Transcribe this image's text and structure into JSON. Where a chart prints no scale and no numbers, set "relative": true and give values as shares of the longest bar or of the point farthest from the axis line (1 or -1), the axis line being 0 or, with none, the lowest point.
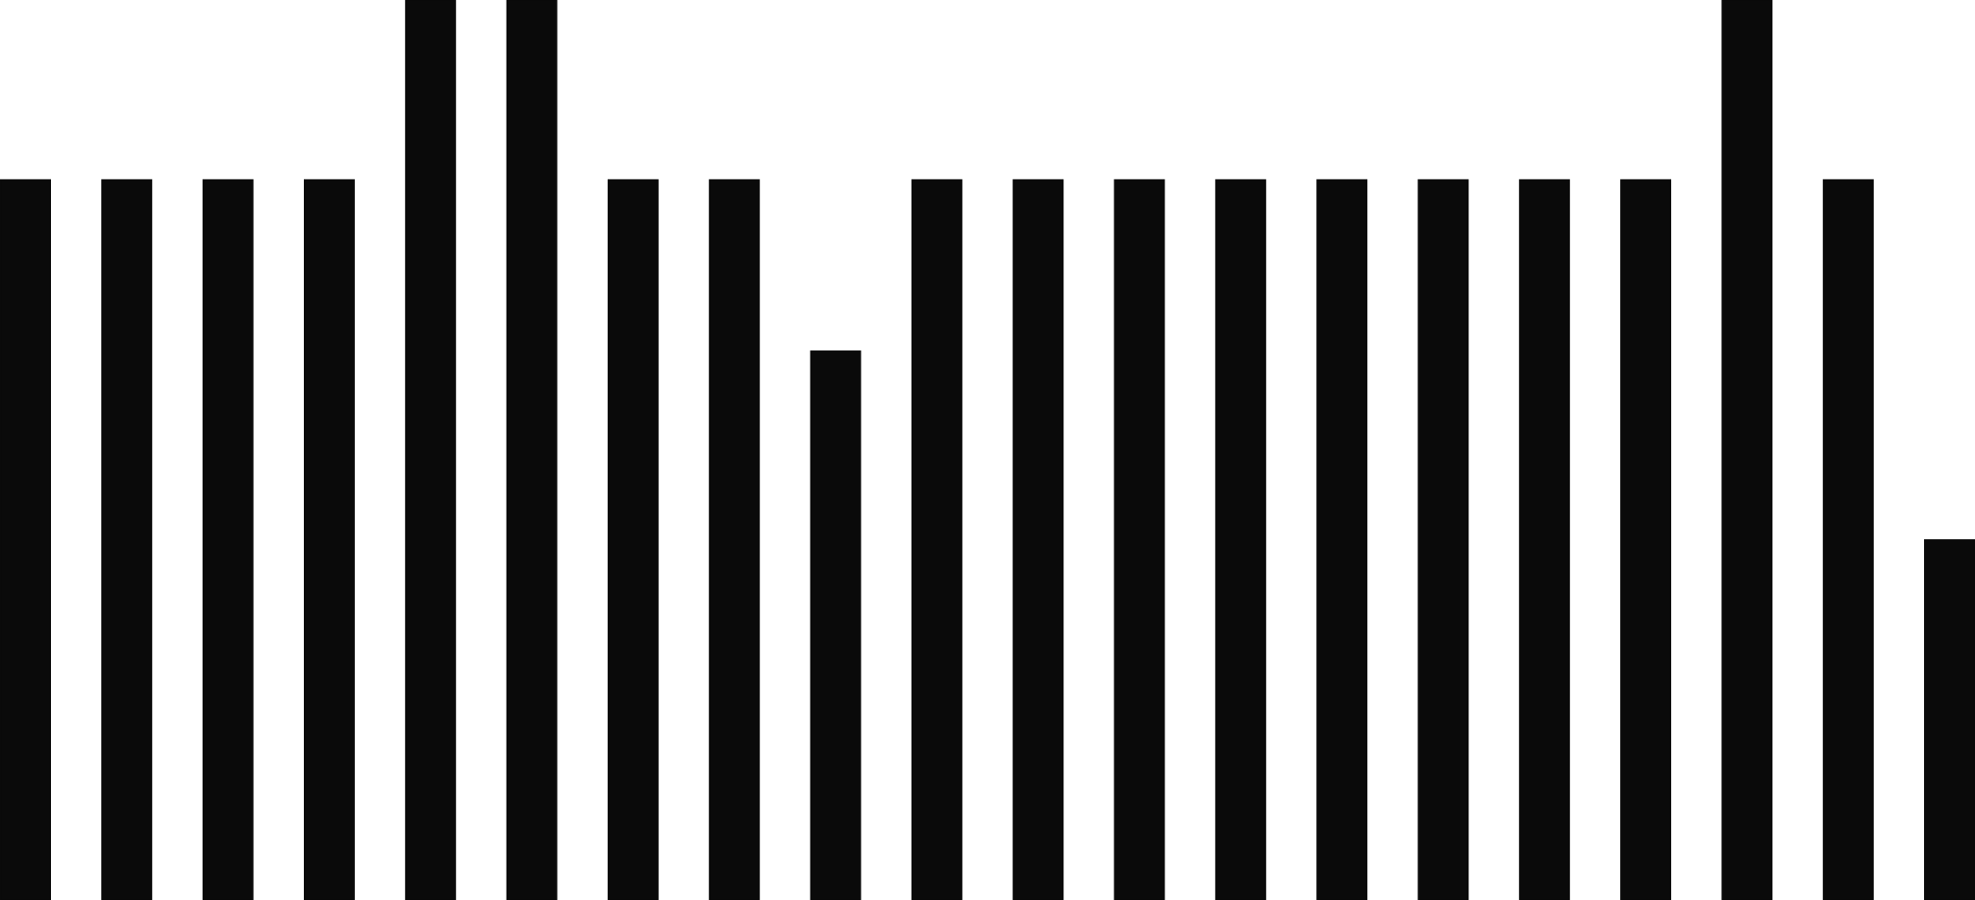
{
  "chart_data": {
    "type": "bar",
    "relative": true,
    "color": "#0a0a0a",
    "categories": [
      null,
      null,
      null,
      null,
      null,
      null,
      null,
      null,
      null,
      null,
      null,
      null,
      null,
      null,
      null,
      null,
      null,
      null,
      null,
      null
    ],
    "values": [
      0.8,
      0.8,
      0.8,
      0.8,
      1,
      1,
      0.8,
      0.8,
      0.61,
      0.8,
      0.8,
      0.8,
      0.8,
      0.8,
      0.8,
      0.8,
      0.8,
      1,
      0.8,
      0.4
    ]
  }
}
